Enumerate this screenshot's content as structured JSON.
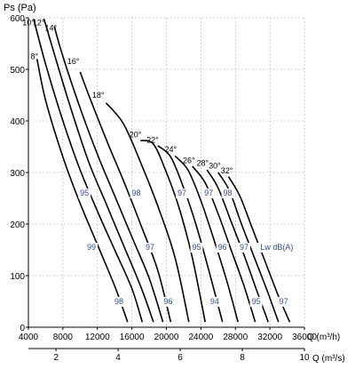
{
  "chart_data": {
    "type": "line",
    "title": "",
    "ylabel": "Ps (Pa)",
    "xlabel": "Q (m³/h)",
    "x2label": "Q (m³/s)",
    "xlim": [
      4000,
      36000
    ],
    "ylim": [
      0,
      600
    ],
    "x2lim": [
      1.111,
      10
    ],
    "grid": true,
    "x_ticks": [
      "4000",
      "8000",
      "12000",
      "16000",
      "20000",
      "24000",
      "28000",
      "32000",
      "36000"
    ],
    "y_ticks": [
      "0",
      "100",
      "200",
      "300",
      "400",
      "500",
      "600"
    ],
    "x2_ticks": [
      "2",
      "4",
      "6",
      "8",
      "10"
    ],
    "series": [
      {
        "name": "8°",
        "x": [
          5000,
          6000,
          8000,
          10000,
          12000,
          14000,
          15500
        ],
        "y": [
          520,
          440,
          330,
          240,
          160,
          80,
          10
        ]
      },
      {
        "name": "10°",
        "x": [
          4600,
          6000,
          8000,
          10000,
          12000,
          14000,
          16000,
          17200
        ],
        "y": [
          598,
          510,
          400,
          305,
          225,
          150,
          75,
          10
        ]
      },
      {
        "name": "12°",
        "x": [
          5800,
          7000,
          9000,
          11000,
          13000,
          15000,
          17000,
          18500
        ],
        "y": [
          598,
          530,
          420,
          320,
          240,
          160,
          80,
          10
        ]
      },
      {
        "name": "14°",
        "x": [
          7000,
          8000,
          10000,
          12000,
          14000,
          16000,
          18000,
          19600
        ],
        "y": [
          583,
          525,
          425,
          335,
          255,
          175,
          95,
          10
        ]
      },
      {
        "name": "16°",
        "x": [
          10000,
          11000,
          13000,
          15000,
          17000,
          19000,
          20500
        ],
        "y": [
          495,
          450,
          365,
          285,
          200,
          110,
          10
        ]
      },
      {
        "name": "18°",
        "x": [
          13000,
          15000,
          17000,
          19000,
          21000,
          22600
        ],
        "y": [
          435,
          395,
          320,
          235,
          135,
          10
        ]
      },
      {
        "name": "20°",
        "x": [
          17000,
          18500,
          20000,
          21500,
          23000,
          24500
        ],
        "y": [
          362,
          355,
          300,
          230,
          135,
          10
        ]
      },
      {
        "name": "22°",
        "x": [
          19000,
          20500,
          22000,
          23500,
          25000,
          26500
        ],
        "y": [
          352,
          330,
          270,
          195,
          105,
          10
        ]
      },
      {
        "name": "24°",
        "x": [
          21000,
          22500,
          24000,
          25500,
          27000,
          28300
        ],
        "y": [
          332,
          305,
          245,
          170,
          90,
          10
        ]
      },
      {
        "name": "26°",
        "x": [
          23000,
          24500,
          26000,
          27500,
          29000,
          30300
        ],
        "y": [
          312,
          280,
          220,
          150,
          80,
          10
        ]
      },
      {
        "name": "28°",
        "x": [
          24700,
          26000,
          27500,
          29000,
          30500,
          31800
        ],
        "y": [
          305,
          270,
          205,
          140,
          70,
          10
        ]
      },
      {
        "name": "30°",
        "x": [
          26000,
          27300,
          28700,
          30200,
          31700,
          33000
        ],
        "y": [
          300,
          265,
          200,
          135,
          70,
          10
        ]
      },
      {
        "name": "32°",
        "x": [
          27200,
          28500,
          30000,
          31500,
          33000,
          34300
        ],
        "y": [
          292,
          255,
          190,
          125,
          60,
          10
        ]
      }
    ],
    "curve_labels": [
      {
        "text": "8°",
        "x": 4700,
        "y": 520
      },
      {
        "text": "10°",
        "x": 4000,
        "y": 585
      },
      {
        "text": "12°",
        "x": 5200,
        "y": 585
      },
      {
        "text": "14°",
        "x": 6600,
        "y": 575
      },
      {
        "text": "16°",
        "x": 9200,
        "y": 510
      },
      {
        "text": "18°",
        "x": 12100,
        "y": 445
      },
      {
        "text": "20°",
        "x": 16400,
        "y": 368
      },
      {
        "text": "22°",
        "x": 18400,
        "y": 358
      },
      {
        "text": "24°",
        "x": 20500,
        "y": 340
      },
      {
        "text": "26°",
        "x": 22600,
        "y": 318
      },
      {
        "text": "28°",
        "x": 24200,
        "y": 313
      },
      {
        "text": "30°",
        "x": 25600,
        "y": 308
      },
      {
        "text": "32°",
        "x": 27000,
        "y": 298
      }
    ],
    "noise_labels": [
      {
        "text": "95",
        "x": 10500,
        "y": 255
      },
      {
        "text": "98",
        "x": 16500,
        "y": 255
      },
      {
        "text": "97",
        "x": 21800,
        "y": 255
      },
      {
        "text": "97",
        "x": 24900,
        "y": 255
      },
      {
        "text": "98",
        "x": 27100,
        "y": 255
      },
      {
        "text": "99",
        "x": 11300,
        "y": 150
      },
      {
        "text": "97",
        "x": 18100,
        "y": 150
      },
      {
        "text": "95",
        "x": 23500,
        "y": 150
      },
      {
        "text": "96",
        "x": 26500,
        "y": 150
      },
      {
        "text": "97",
        "x": 29000,
        "y": 150
      },
      {
        "text": "98",
        "x": 14500,
        "y": 45
      },
      {
        "text": "96",
        "x": 20200,
        "y": 45
      },
      {
        "text": "94",
        "x": 25600,
        "y": 45
      },
      {
        "text": "95",
        "x": 30400,
        "y": 45
      },
      {
        "text": "97",
        "x": 33600,
        "y": 45
      }
    ],
    "noise_unit_label": {
      "text": "Lw dB(A)",
      "x": 32800,
      "y": 150
    }
  }
}
